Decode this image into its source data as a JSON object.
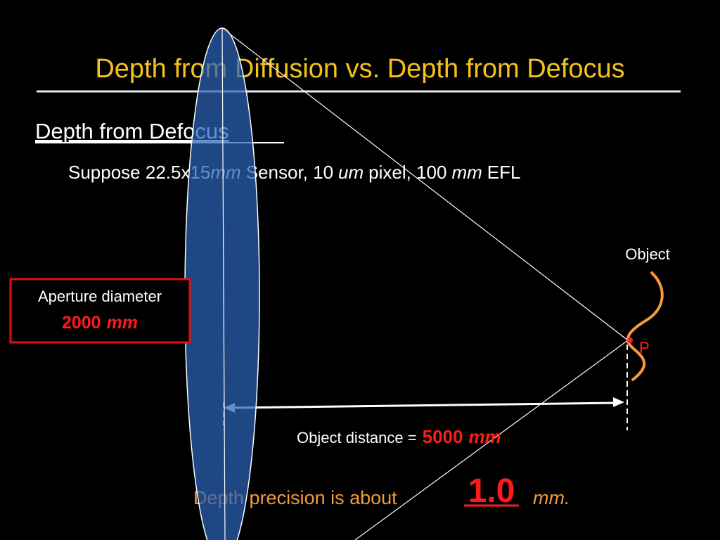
{
  "header": {
    "title": "Depth from Diffusion vs. Depth from Defocus"
  },
  "section": {
    "heading": "Depth from Defocus",
    "setup": [
      "Suppose 22.5x15",
      "mm",
      "Sensor, 10",
      "um",
      "pixel, 100",
      "mm",
      "EFL"
    ]
  },
  "diagram": {
    "object_label": "Object",
    "point_label": "P",
    "aperture": {
      "label": "Aperture diameter",
      "value": "2000",
      "unit": "mm"
    },
    "distance": {
      "label": "Object distance =",
      "value": "5000",
      "unit": "mm"
    },
    "precision": {
      "label": "Depth precision is about",
      "value": "1.0",
      "unit": "mm."
    }
  }
}
